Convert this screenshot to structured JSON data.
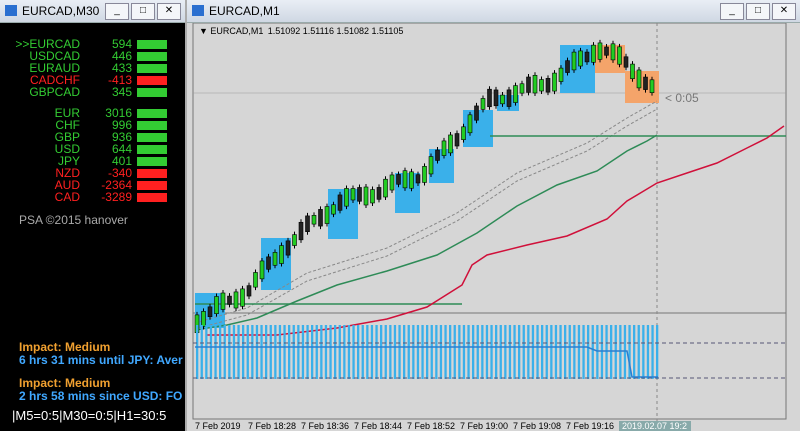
{
  "left_window": {
    "title": "EURCAD,M30",
    "pairs": [
      {
        "name": ">>EURCAD",
        "value": 594,
        "color": "#33cc33"
      },
      {
        "name": "USDCAD",
        "value": 446,
        "color": "#33cc33"
      },
      {
        "name": "EURAUD",
        "value": 433,
        "color": "#33cc33"
      },
      {
        "name": "CADCHF",
        "value": -413,
        "color": "#ff2020"
      },
      {
        "name": "GBPCAD",
        "value": 345,
        "color": "#33cc33"
      }
    ],
    "currencies": [
      {
        "name": "EUR",
        "value": 3016,
        "color": "#33cc33"
      },
      {
        "name": "CHF",
        "value": 996,
        "color": "#33cc33"
      },
      {
        "name": "GBP",
        "value": 936,
        "color": "#33cc33"
      },
      {
        "name": "USD",
        "value": 644,
        "color": "#33cc33"
      },
      {
        "name": "JPY",
        "value": 401,
        "color": "#33cc33"
      },
      {
        "name": "NZD",
        "value": -340,
        "color": "#ff2020"
      },
      {
        "name": "AUD",
        "value": -2364,
        "color": "#ff2020"
      },
      {
        "name": "CAD",
        "value": -3289,
        "color": "#ff2020"
      }
    ],
    "copyright": "PSA ©2015 hanover",
    "news": [
      {
        "impact": "Impact: Medium",
        "text": "6 hrs 31 mins until JPY: Aver"
      },
      {
        "impact": "Impact: Medium",
        "text": "2 hrs 58 mins since USD: FO"
      }
    ],
    "status": "|M5=0:5|M30=0:5|H1=30:5"
  },
  "right_window": {
    "title": "EURCAD,M1",
    "symbol": "EURCAD,M1",
    "ohlc": "1.51092 1.51116 1.51082 1.51105",
    "timer": "< 0:05",
    "time_labels": [
      "7 Feb 2019",
      "7 Feb 18:28",
      "7 Feb 18:36",
      "7 Feb 18:44",
      "7 Feb 18:52",
      "7 Feb 19:00",
      "7 Feb 19:08",
      "7 Feb 19:16"
    ],
    "cursor_time": "2019.02.07 19:2"
  }
}
